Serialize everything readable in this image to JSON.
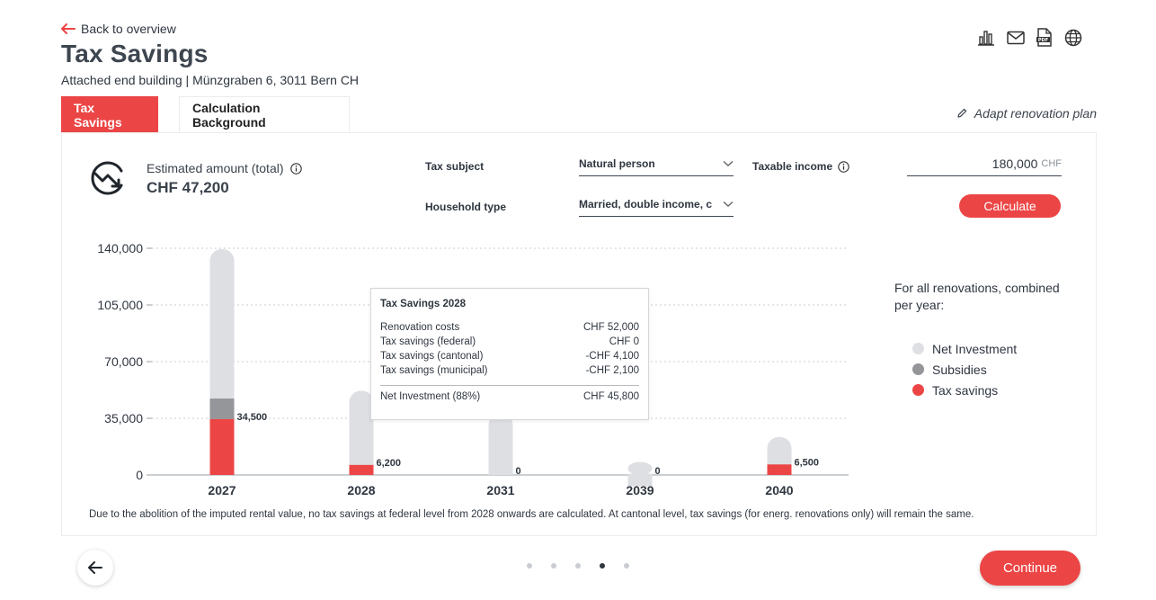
{
  "header": {
    "back_label": "Back to overview",
    "title": "Tax Savings",
    "subtitle": "Attached end building | Münzgraben 6, 3011 Bern CH"
  },
  "toolbar": [
    {
      "icon": "bar-chart-icon"
    },
    {
      "icon": "mail-icon"
    },
    {
      "icon": "pdf-icon"
    },
    {
      "icon": "globe-icon"
    }
  ],
  "tabs": [
    {
      "label": "Tax Savings",
      "active": true
    },
    {
      "label": "Calculation Background",
      "active": false
    }
  ],
  "adapt_label": "Adapt renovation plan",
  "estimate": {
    "label": "Estimated amount (total)",
    "value": "CHF 47,200"
  },
  "form": {
    "tax_subject_label": "Tax subject",
    "tax_subject_value": "Natural person",
    "household_label": "Household type",
    "household_value": "Married, double income, children",
    "income_label": "Taxable income",
    "income_value": "180,000",
    "income_unit": "CHF",
    "calculate_label": "Calculate"
  },
  "chart_data": {
    "type": "bar",
    "stacked": true,
    "categories": [
      "2027",
      "2028",
      "2031",
      "2039",
      "2040"
    ],
    "ylim": [
      0,
      140000
    ],
    "yticks": [
      "0",
      "35,000",
      "70,000",
      "105,000",
      "140,000"
    ],
    "ytick_values": [
      0,
      35000,
      70000,
      105000,
      140000
    ],
    "series": [
      {
        "name": "Tax savings",
        "color": "#ec4545",
        "values": [
          34500,
          6200,
          0,
          0,
          6500
        ]
      },
      {
        "name": "Subsidies",
        "color": "#949699",
        "values": [
          12700,
          0,
          0,
          0,
          0
        ]
      },
      {
        "name": "Net Investment",
        "color": "#dedfe3",
        "values": [
          92300,
          45800,
          38000,
          8000,
          17000
        ]
      }
    ],
    "data_labels": [
      "34,500",
      "6,200",
      "0",
      "0",
      "6,500"
    ],
    "grid": true
  },
  "legend": {
    "title": "For all renovations, combined per year:",
    "items": [
      {
        "label": "Net Investment",
        "color": "#dedfe3"
      },
      {
        "label": "Subsidies",
        "color": "#949699"
      },
      {
        "label": "Tax savings",
        "color": "#ec4545"
      }
    ]
  },
  "tooltip": {
    "title": "Tax Savings 2028",
    "rows": [
      {
        "label": "Renovation costs",
        "value": "CHF 52,000"
      },
      {
        "label": "Tax savings (federal)",
        "value": "CHF 0"
      },
      {
        "label": "Tax savings (cantonal)",
        "value": "-CHF 4,100"
      },
      {
        "label": "Tax savings (municipal)",
        "value": "-CHF 2,100"
      }
    ],
    "total": {
      "label": "Net Investment (88%)",
      "value": "CHF 45,800"
    }
  },
  "footnote": "Due to the abolition of the imputed rental value, no tax savings at federal level from 2028 onwards are calculated. At cantonal level, tax savings (for energ. renovations only) will remain the same.",
  "pager": {
    "count": 5,
    "active": 3
  },
  "continue_label": "Continue"
}
